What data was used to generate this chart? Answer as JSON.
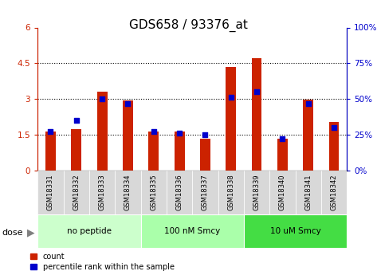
{
  "title": "GDS658 / 93376_at",
  "categories": [
    "GSM18331",
    "GSM18332",
    "GSM18333",
    "GSM18334",
    "GSM18335",
    "GSM18336",
    "GSM18337",
    "GSM18338",
    "GSM18339",
    "GSM18340",
    "GSM18341",
    "GSM18342"
  ],
  "count_values": [
    1.65,
    1.75,
    3.3,
    2.95,
    1.65,
    1.65,
    1.35,
    4.35,
    4.7,
    1.35,
    2.98,
    2.05
  ],
  "percentile_values": [
    27,
    35,
    50,
    47,
    27,
    26,
    25,
    51,
    55,
    22,
    47,
    30
  ],
  "left_ylim": [
    0,
    6
  ],
  "right_ylim": [
    0,
    100
  ],
  "left_yticks": [
    0,
    1.5,
    3,
    4.5,
    6
  ],
  "right_yticks": [
    0,
    25,
    50,
    75,
    100
  ],
  "left_ytick_labels": [
    "0",
    "1.5",
    "3",
    "4.5",
    "6"
  ],
  "right_ytick_labels": [
    "0%",
    "25%",
    "50%",
    "75%",
    "100%"
  ],
  "bar_color": "#cc2200",
  "dot_color": "#0000cc",
  "groups": [
    {
      "label": "no peptide",
      "start": 0,
      "end": 4,
      "color": "#ccffcc"
    },
    {
      "label": "100 nM Smcy",
      "start": 4,
      "end": 8,
      "color": "#aaffaa"
    },
    {
      "label": "10 uM Smcy",
      "start": 8,
      "end": 12,
      "color": "#44dd44"
    }
  ],
  "dose_label": "dose",
  "legend_count": "count",
  "legend_percentile": "percentile rank within the sample",
  "tick_color_left": "#cc2200",
  "tick_color_right": "#0000cc",
  "xticklabel_bg": "#d8d8d8",
  "plot_bg": "#ffffff",
  "grid_color": "#000000",
  "title_fontsize": 11,
  "tick_fontsize": 7.5
}
